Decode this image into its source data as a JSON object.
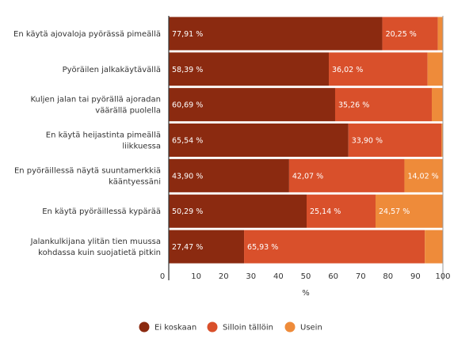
{
  "chart_data": {
    "type": "bar",
    "orientation": "horizontal",
    "stacked": true,
    "categories": [
      [
        "En käytä ajovaloja pyörässä pimeällä"
      ],
      [
        "Pyöräilen jalkakäytävällä"
      ],
      [
        "Kuljen jalan tai pyörällä ajoradan",
        "väärällä puolella"
      ],
      [
        "En käytä heijastinta pimeällä",
        "liikkuessa"
      ],
      [
        "En pyöräillessä näytä suuntamerkkiä",
        "kääntyessäni"
      ],
      [
        "En käytä pyöräillessä kypärää"
      ],
      [
        "Jalankulkijana ylitän tien muussa",
        "kohdassa kuin suojatietä pitkin"
      ]
    ],
    "series": [
      {
        "name": "Ei koskaan",
        "color": "#8B2A10",
        "values": [
          77.91,
          58.39,
          60.69,
          65.54,
          43.9,
          50.29,
          27.47
        ],
        "labels": [
          "77,91 %",
          "58,39 %",
          "60,69 %",
          "65,54 %",
          "43,90 %",
          "50,29 %",
          "27,47 %"
        ]
      },
      {
        "name": "Silloin tällöin",
        "color": "#D9502B",
        "values": [
          20.25,
          36.02,
          35.26,
          33.9,
          42.07,
          25.14,
          65.93
        ],
        "labels": [
          "20,25 %",
          "36,02 %",
          "35,26 %",
          "33,90 %",
          "42,07 %",
          "25,14 %",
          "65,93 %"
        ]
      },
      {
        "name": "Usein",
        "color": "#EE8B3A",
        "values": [
          1.84,
          5.59,
          4.05,
          0.56,
          14.02,
          24.57,
          6.6
        ],
        "labels": [
          "",
          "",
          "",
          "",
          "14,02 %",
          "24,57 %",
          ""
        ]
      }
    ],
    "xlim": [
      0,
      100
    ],
    "xticks": [
      0,
      10,
      20,
      30,
      40,
      50,
      60,
      70,
      80,
      90,
      100
    ],
    "xlabel": "%",
    "grid": false,
    "legend_position": "bottom"
  }
}
